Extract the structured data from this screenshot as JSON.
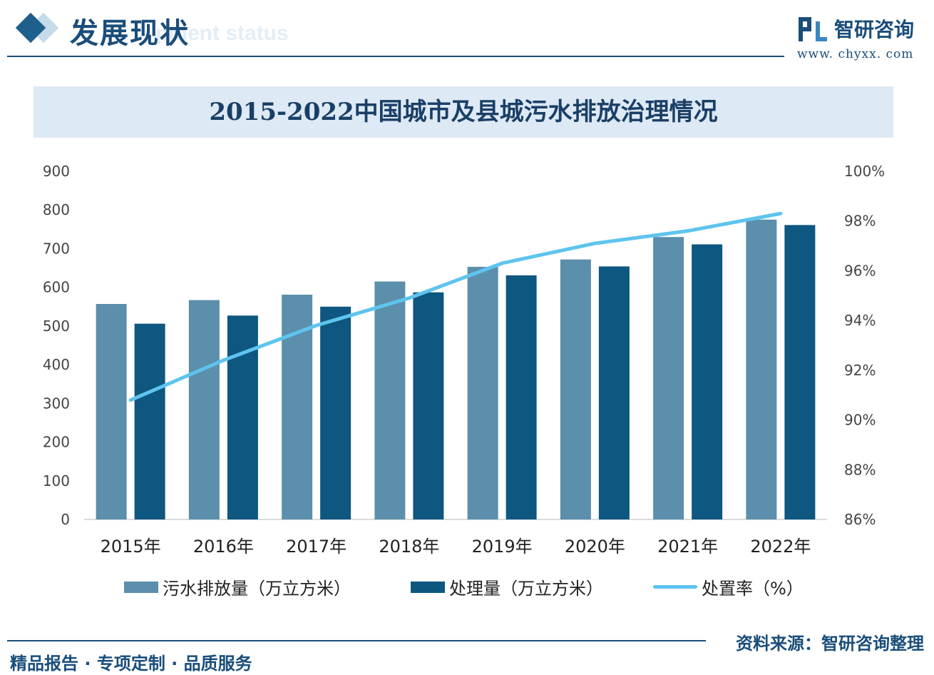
{
  "header": {
    "title": "发展现状",
    "subtitle": "pment status",
    "brand_name": "智研咨询",
    "brand_url": "www. chyxx. com"
  },
  "footer": {
    "left_text": "精品报告 · 专项定制 · 品质服务",
    "source_text": "资料来源：智研咨询整理"
  },
  "colors": {
    "discharge": "#5b8fab",
    "treated": "#0d5780",
    "rate": "#5ec4ee",
    "brand": "#1a4d7a"
  },
  "chart_data": {
    "type": "bar",
    "title": "2015-2022中国城市及县城污水排放治理情况",
    "categories": [
      "2015年",
      "2016年",
      "2017年",
      "2018年",
      "2019年",
      "2020年",
      "2021年",
      "2022年"
    ],
    "series": [
      {
        "name": "污水排放量（万立方米）",
        "type": "bar",
        "axis": "left",
        "values": [
          557,
          567,
          581,
          615,
          653,
          672,
          730,
          775
        ]
      },
      {
        "name": "处理量（万立方米）",
        "type": "bar",
        "axis": "left",
        "values": [
          506,
          527,
          550,
          587,
          631,
          654,
          711,
          761
        ]
      },
      {
        "name": "处置率（%）",
        "type": "line",
        "axis": "right",
        "values": [
          90.8,
          92.4,
          93.8,
          94.9,
          96.3,
          97.1,
          97.6,
          98.3
        ]
      }
    ],
    "y_left": {
      "min": 0,
      "max": 900,
      "ticks": [
        "0",
        "100",
        "200",
        "300",
        "400",
        "500",
        "600",
        "700",
        "800",
        "900"
      ]
    },
    "y_right": {
      "min": 86,
      "max": 100,
      "ticks": [
        "86%",
        "88%",
        "90%",
        "92%",
        "94%",
        "96%",
        "98%",
        "100%"
      ]
    },
    "grid": false,
    "legend": "bottom"
  }
}
